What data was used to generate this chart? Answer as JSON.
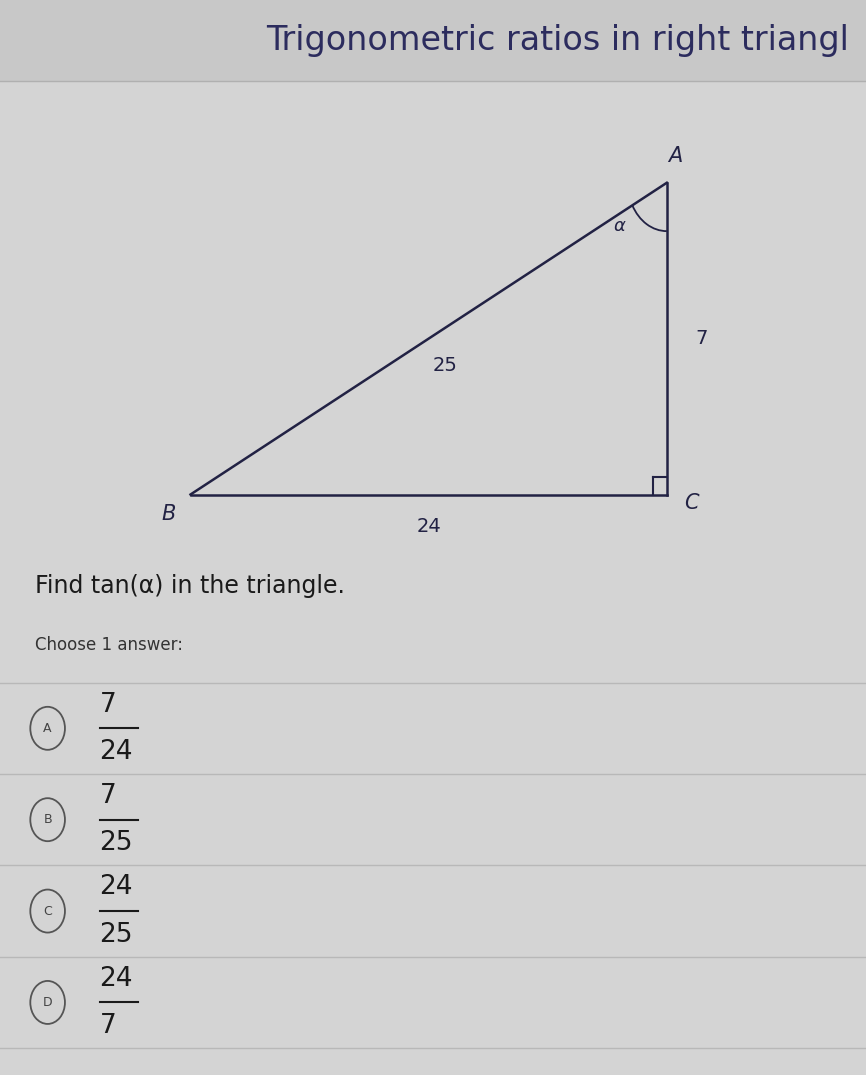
{
  "title": "Trigonometric ratios in right triangl",
  "title_fontsize": 24,
  "title_color": "#2c2c5e",
  "background_color": "#d4d4d4",
  "content_bg": "#d8d8d8",
  "triangle": {
    "B": [
      0.22,
      0.27
    ],
    "A": [
      0.77,
      0.72
    ],
    "C": [
      0.77,
      0.27
    ],
    "label_B": "B",
    "label_A": "A",
    "label_C": "C",
    "side_BA": "25",
    "side_BC": "24",
    "side_AC": "7",
    "alpha_label": "α"
  },
  "question": "Find tan(α) in the triangle.",
  "question_fontsize": 17,
  "choose_text": "Choose 1 answer:",
  "choose_fontsize": 12,
  "answers": [
    {
      "label": "A",
      "numerator": "7",
      "denominator": "24"
    },
    {
      "label": "B",
      "numerator": "7",
      "denominator": "25"
    },
    {
      "label": "C",
      "numerator": "24",
      "denominator": "25"
    },
    {
      "label": "D",
      "numerator": "24",
      "denominator": "7"
    }
  ],
  "answer_fontsize": 19,
  "line_color": "#2c2c5e",
  "text_color": "#333333",
  "dark_text": "#2c2c5e"
}
